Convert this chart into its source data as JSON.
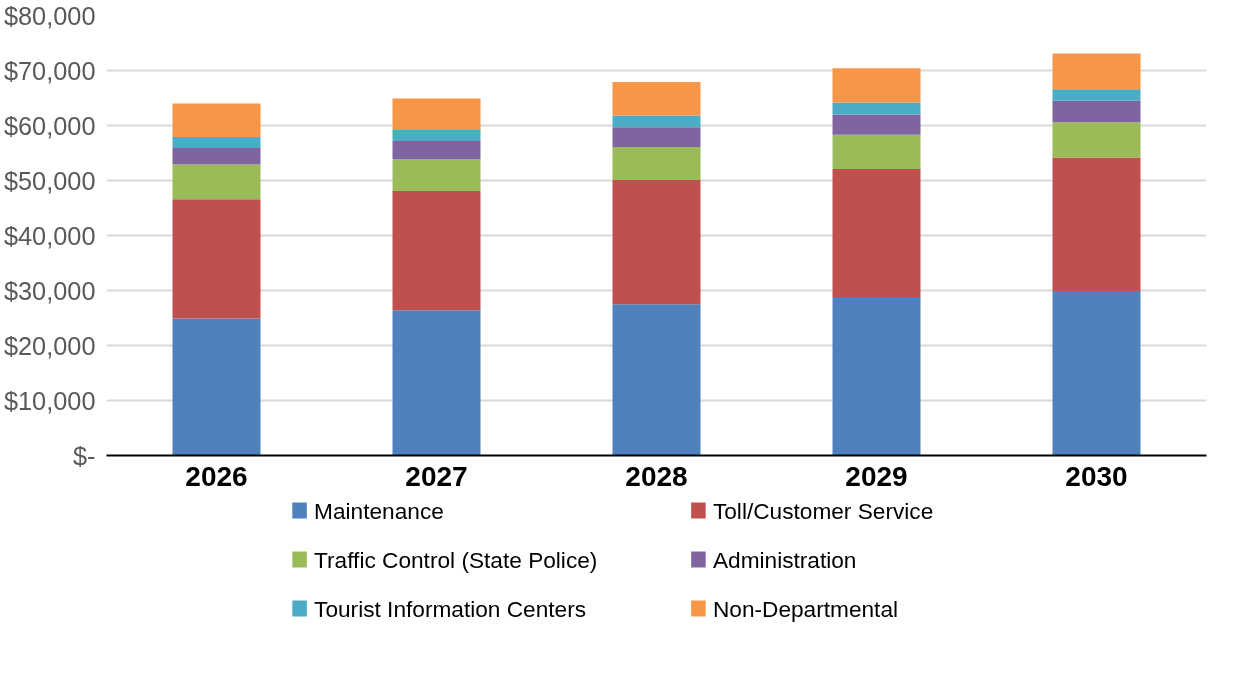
{
  "chart_data": {
    "type": "bar",
    "stacked": true,
    "categories": [
      "2026",
      "2027",
      "2028",
      "2029",
      "2030"
    ],
    "series": [
      {
        "name": "Maintenance",
        "color": "#4f81bd",
        "values": [
          24900,
          26400,
          27500,
          28800,
          29900
        ]
      },
      {
        "name": "Toll/Customer Service",
        "color": "#c0504d",
        "values": [
          21700,
          21700,
          22600,
          23300,
          24300
        ]
      },
      {
        "name": "Traffic Control (State Police)",
        "color": "#9bbb59",
        "values": [
          6300,
          5800,
          6000,
          6200,
          6400
        ]
      },
      {
        "name": "Administration",
        "color": "#8064a2",
        "values": [
          3000,
          3300,
          3600,
          3700,
          3900
        ]
      },
      {
        "name": "Tourist Information Centers",
        "color": "#4bacc6",
        "values": [
          2000,
          2000,
          2100,
          2200,
          2100
        ]
      },
      {
        "name": "Non-Departmental",
        "color": "#f79646",
        "values": [
          6100,
          5700,
          6100,
          6200,
          6500
        ]
      }
    ],
    "ylim": [
      0,
      80000
    ],
    "yticks": [
      {
        "value": 0,
        "label": "$-"
      },
      {
        "value": 10000,
        "label": "$10,000"
      },
      {
        "value": 20000,
        "label": "$20,000"
      },
      {
        "value": 30000,
        "label": "$30,000"
      },
      {
        "value": 40000,
        "label": "$40,000"
      },
      {
        "value": 50000,
        "label": "$50,000"
      },
      {
        "value": 60000,
        "label": "$60,000"
      },
      {
        "value": 70000,
        "label": "$70,000"
      },
      {
        "value": 80000,
        "label": "$80,000"
      }
    ],
    "grid": "y",
    "legend": "bottom"
  }
}
